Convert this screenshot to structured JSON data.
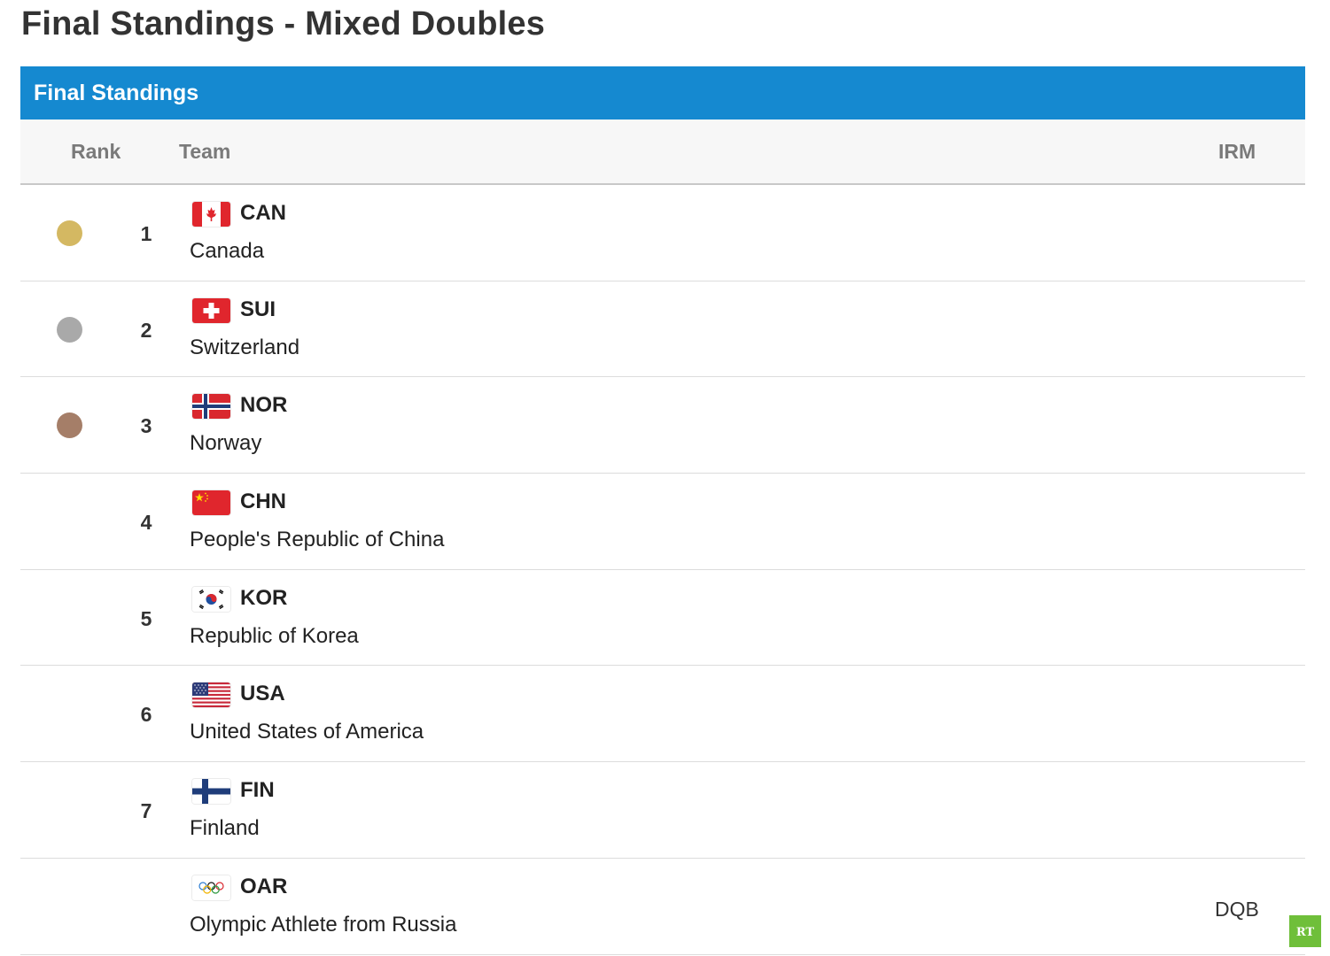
{
  "page": {
    "title": "Final Standings - Mixed Doubles"
  },
  "panel": {
    "header": "Final Standings",
    "columns": {
      "rank": "Rank",
      "team": "Team",
      "irm": "IRM"
    }
  },
  "colors": {
    "header_blue": "#1589d0",
    "gold": "#d4b862",
    "silver": "#a9a9a9",
    "bronze": "#a57e68"
  },
  "rows": [
    {
      "rank": "1",
      "medal": "gold",
      "code": "CAN",
      "country": "Canada",
      "irm": "",
      "flag_icon": "canada-flag-icon"
    },
    {
      "rank": "2",
      "medal": "silver",
      "code": "SUI",
      "country": "Switzerland",
      "irm": "",
      "flag_icon": "switzerland-flag-icon"
    },
    {
      "rank": "3",
      "medal": "bronze",
      "code": "NOR",
      "country": "Norway",
      "irm": "",
      "flag_icon": "norway-flag-icon"
    },
    {
      "rank": "4",
      "medal": "",
      "code": "CHN",
      "country": "People's Republic of China",
      "irm": "",
      "flag_icon": "china-flag-icon"
    },
    {
      "rank": "5",
      "medal": "",
      "code": "KOR",
      "country": "Republic of Korea",
      "irm": "",
      "flag_icon": "korea-flag-icon"
    },
    {
      "rank": "6",
      "medal": "",
      "code": "USA",
      "country": "United States of America",
      "irm": "",
      "flag_icon": "usa-flag-icon"
    },
    {
      "rank": "7",
      "medal": "",
      "code": "FIN",
      "country": "Finland",
      "irm": "",
      "flag_icon": "finland-flag-icon"
    },
    {
      "rank": "",
      "medal": "",
      "code": "OAR",
      "country": "Olympic Athlete from Russia",
      "irm": "DQB",
      "flag_icon": "olympic-rings-icon"
    }
  ],
  "watermark": {
    "logo": "RT",
    "icon": "rt-logo-icon"
  }
}
